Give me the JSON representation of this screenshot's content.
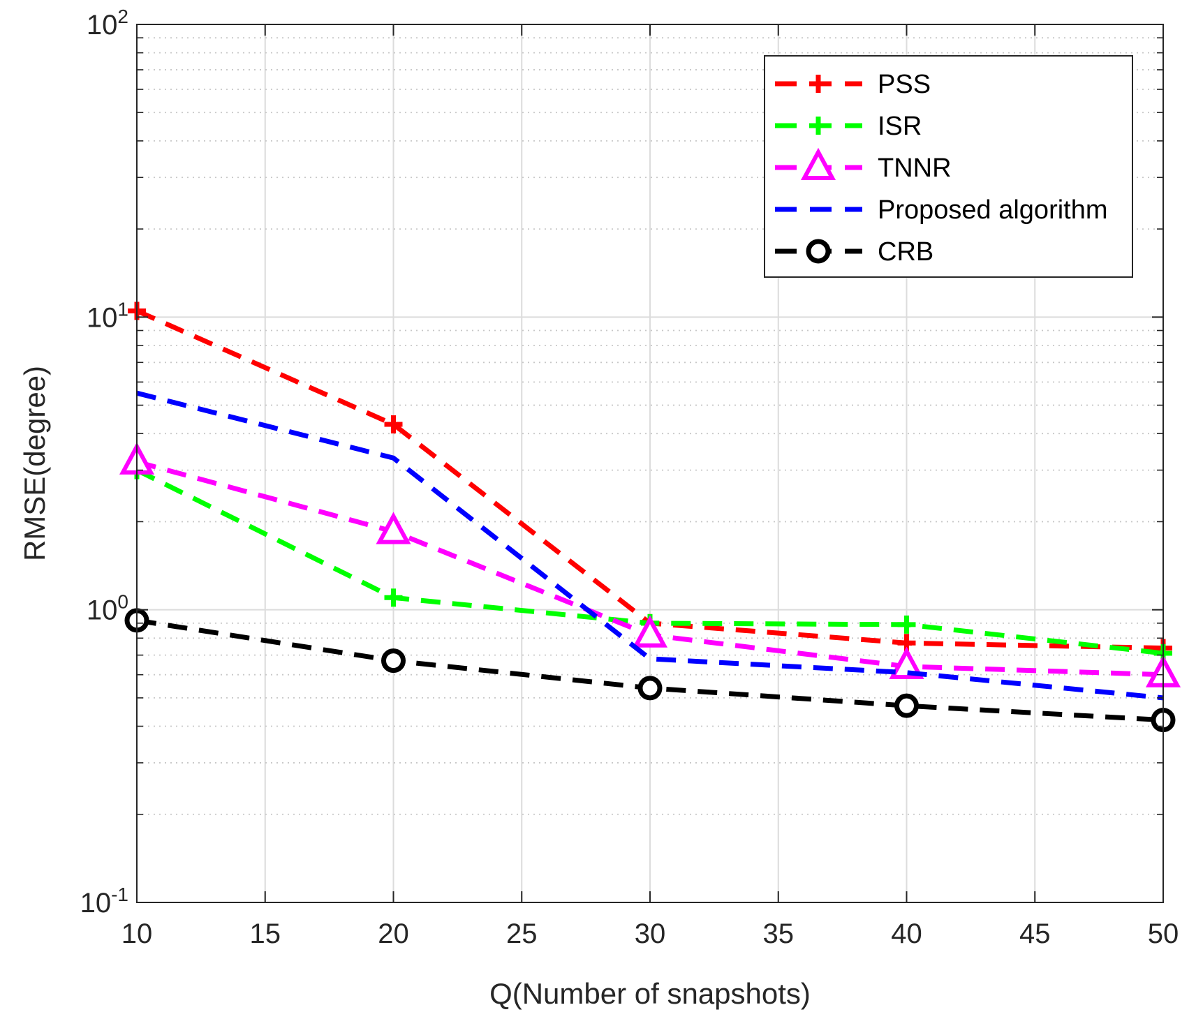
{
  "chart_data": {
    "type": "line",
    "title": "",
    "xlabel": "Q(Number of snapshots)",
    "ylabel": "RMSE(degree)",
    "yscale": "log",
    "xlim": [
      10,
      50
    ],
    "ylim": [
      0.1,
      100
    ],
    "grid": true,
    "legend_position": "top-right",
    "x_ticks": [
      10,
      15,
      20,
      25,
      30,
      35,
      40,
      45,
      50
    ],
    "x_tick_labels": [
      "10",
      "15",
      "20",
      "25",
      "30",
      "35",
      "40",
      "45",
      "50"
    ],
    "y_ticks": [
      {
        "value": 0.1,
        "base": "10",
        "exp": "-1"
      },
      {
        "value": 1,
        "base": "10",
        "exp": "0"
      },
      {
        "value": 10,
        "base": "10",
        "exp": "1"
      },
      {
        "value": 100,
        "base": "10",
        "exp": "2"
      }
    ],
    "x": [
      10,
      20,
      30,
      40,
      50
    ],
    "series": [
      {
        "name": "PSS",
        "color": "#ff0000",
        "marker": "plus",
        "values": [
          10.5,
          4.3,
          0.9,
          0.77,
          0.74
        ]
      },
      {
        "name": "ISR",
        "color": "#00ff00",
        "marker": "plus",
        "values": [
          3.0,
          1.1,
          0.9,
          0.89,
          0.71
        ]
      },
      {
        "name": "TNNR",
        "color": "#ff00ff",
        "marker": "triangle",
        "values": [
          3.2,
          1.85,
          0.82,
          0.64,
          0.6
        ]
      },
      {
        "name": "Proposed algorithm",
        "color": "#0000ff",
        "marker": "none",
        "values": [
          5.5,
          3.3,
          0.68,
          0.61,
          0.5
        ]
      },
      {
        "name": "CRB",
        "color": "#000000",
        "marker": "circle",
        "values": [
          0.92,
          0.67,
          0.54,
          0.47,
          0.42
        ]
      }
    ]
  }
}
